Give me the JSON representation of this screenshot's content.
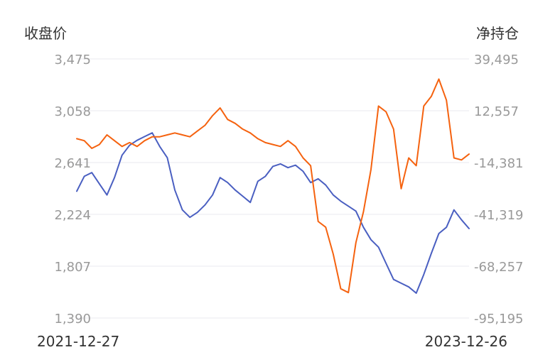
{
  "chart_data": {
    "type": "line",
    "left_axis_title": "收盘价",
    "right_axis_title": "净持仓",
    "left_ticks": [
      "3,475",
      "3,058",
      "2,641",
      "2,224",
      "1,807",
      "1,390"
    ],
    "right_ticks": [
      "39,495",
      "12,557",
      "-14,381",
      "-41,319",
      "-68,257",
      "-95,195"
    ],
    "left_ylim": [
      1390,
      3475
    ],
    "right_ylim": [
      -95195,
      39495
    ],
    "x_start_label": "2021-12-27",
    "x_end_label": "2023-12-26",
    "grid": true,
    "x": [
      "2021-12-27",
      "2022-01-10",
      "2022-01-24",
      "2022-02-07",
      "2022-02-21",
      "2022-03-07",
      "2022-03-21",
      "2022-04-04",
      "2022-04-18",
      "2022-05-02",
      "2022-05-16",
      "2022-05-30",
      "2022-06-13",
      "2022-06-27",
      "2022-07-11",
      "2022-07-25",
      "2022-08-08",
      "2022-08-22",
      "2022-09-05",
      "2022-09-19",
      "2022-10-03",
      "2022-10-17",
      "2022-10-31",
      "2022-11-14",
      "2022-11-28",
      "2022-12-12",
      "2022-12-26",
      "2023-01-09",
      "2023-01-23",
      "2023-02-06",
      "2023-02-20",
      "2023-03-06",
      "2023-03-20",
      "2023-04-03",
      "2023-04-17",
      "2023-05-01",
      "2023-05-15",
      "2023-05-29",
      "2023-06-12",
      "2023-06-26",
      "2023-07-10",
      "2023-07-24",
      "2023-08-07",
      "2023-08-21",
      "2023-09-04",
      "2023-09-18",
      "2023-10-02",
      "2023-10-16",
      "2023-10-30",
      "2023-11-13",
      "2023-11-27",
      "2023-12-11",
      "2023-12-26"
    ],
    "series": [
      {
        "color": "#4a5fc1",
        "axis": "left",
        "values": [
          2410,
          2530,
          2560,
          2470,
          2380,
          2520,
          2700,
          2780,
          2820,
          2850,
          2880,
          2770,
          2680,
          2420,
          2260,
          2200,
          2240,
          2300,
          2380,
          2520,
          2480,
          2420,
          2370,
          2320,
          2490,
          2530,
          2610,
          2630,
          2600,
          2620,
          2570,
          2480,
          2510,
          2460,
          2380,
          2330,
          2290,
          2250,
          2120,
          2020,
          1960,
          1830,
          1700,
          1670,
          1640,
          1590,
          1740,
          1910,
          2070,
          2120,
          2260,
          2180,
          2110
        ]
      },
      {
        "color": "#f5620f",
        "axis": "right",
        "values": [
          -2000,
          -3000,
          -7000,
          -5000,
          0,
          -3000,
          -6000,
          -4000,
          -6000,
          -3000,
          -1000,
          -1000,
          0,
          1000,
          0,
          -1000,
          2000,
          5000,
          10000,
          14000,
          8000,
          6000,
          3000,
          1000,
          -2000,
          -4000,
          -5000,
          -6000,
          -3000,
          -6000,
          -12000,
          -16000,
          -45000,
          -48000,
          -62000,
          -80000,
          -82000,
          -56000,
          -40000,
          -18000,
          15000,
          12000,
          3000,
          -28000,
          -12000,
          -16000,
          15000,
          20000,
          29000,
          18000,
          -12000,
          -13000,
          -10000
        ]
      }
    ]
  }
}
